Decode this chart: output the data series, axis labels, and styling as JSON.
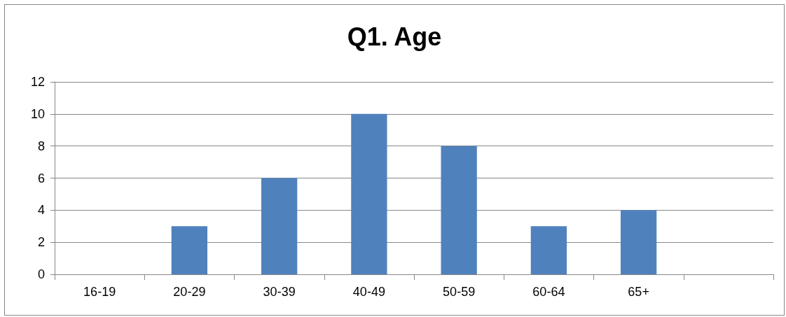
{
  "chart_data": {
    "type": "bar",
    "title": "Q1. Age",
    "categories": [
      "16-19",
      "20-29",
      "30-39",
      "40-49",
      "50-59",
      "60-64",
      "65+",
      null
    ],
    "values": [
      0,
      3,
      6,
      10,
      8,
      3,
      4,
      null
    ],
    "color": "#4f81bd",
    "ylim": [
      0,
      12
    ],
    "yticks": [
      0,
      2,
      4,
      6,
      8,
      10,
      12
    ],
    "grid": "y"
  }
}
